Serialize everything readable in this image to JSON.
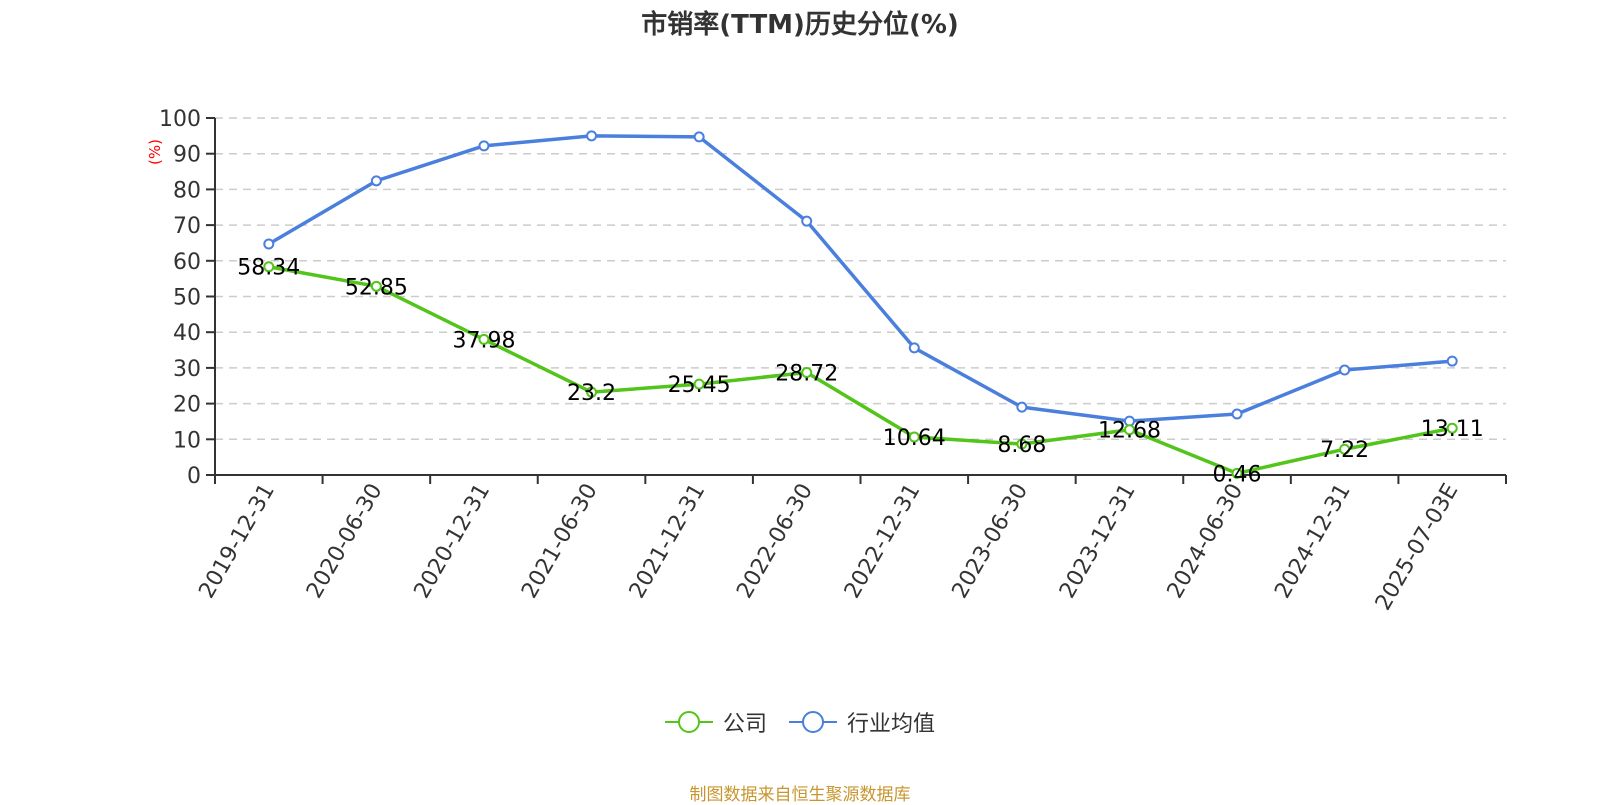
{
  "title": "市销率(TTM)历史分位(%)",
  "footer": "制图数据来自恒生聚源数据库",
  "colors": {
    "company": "#52c41a",
    "industry": "#4a7fdd",
    "axis": "#333333",
    "grid": "#cccccc",
    "unit": "#ff0000",
    "footer": "#c8962f"
  },
  "legend": [
    {
      "label": "公司",
      "color": "#52c41a"
    },
    {
      "label": "行业均值",
      "color": "#4a7fdd"
    }
  ],
  "chart_data": {
    "type": "line",
    "title": "市销率(TTM)历史分位(%)",
    "xlabel": "",
    "ylabel": "(%)",
    "ylim": [
      0,
      100
    ],
    "yticks": [
      0,
      10,
      20,
      30,
      40,
      50,
      60,
      70,
      80,
      90,
      100
    ],
    "grid": true,
    "legend_position": "bottom",
    "categories": [
      "2019-12-31",
      "2020-06-30",
      "2020-12-31",
      "2021-06-30",
      "2021-12-31",
      "2022-06-30",
      "2022-12-31",
      "2023-06-30",
      "2023-12-31",
      "2024-06-30",
      "2024-12-31",
      "2025-07-03E"
    ],
    "series": [
      {
        "name": "公司",
        "color": "#52c41a",
        "labels_shown": true,
        "values": [
          58.34,
          52.85,
          37.98,
          23.2,
          25.45,
          28.72,
          10.64,
          8.68,
          12.68,
          0.46,
          7.22,
          13.11
        ]
      },
      {
        "name": "行业均值",
        "color": "#4a7fdd",
        "labels_shown": false,
        "values": [
          64.7,
          82.4,
          92.2,
          95.0,
          94.7,
          71.1,
          35.6,
          19.0,
          15.1,
          17.1,
          29.4,
          31.9
        ]
      }
    ]
  }
}
